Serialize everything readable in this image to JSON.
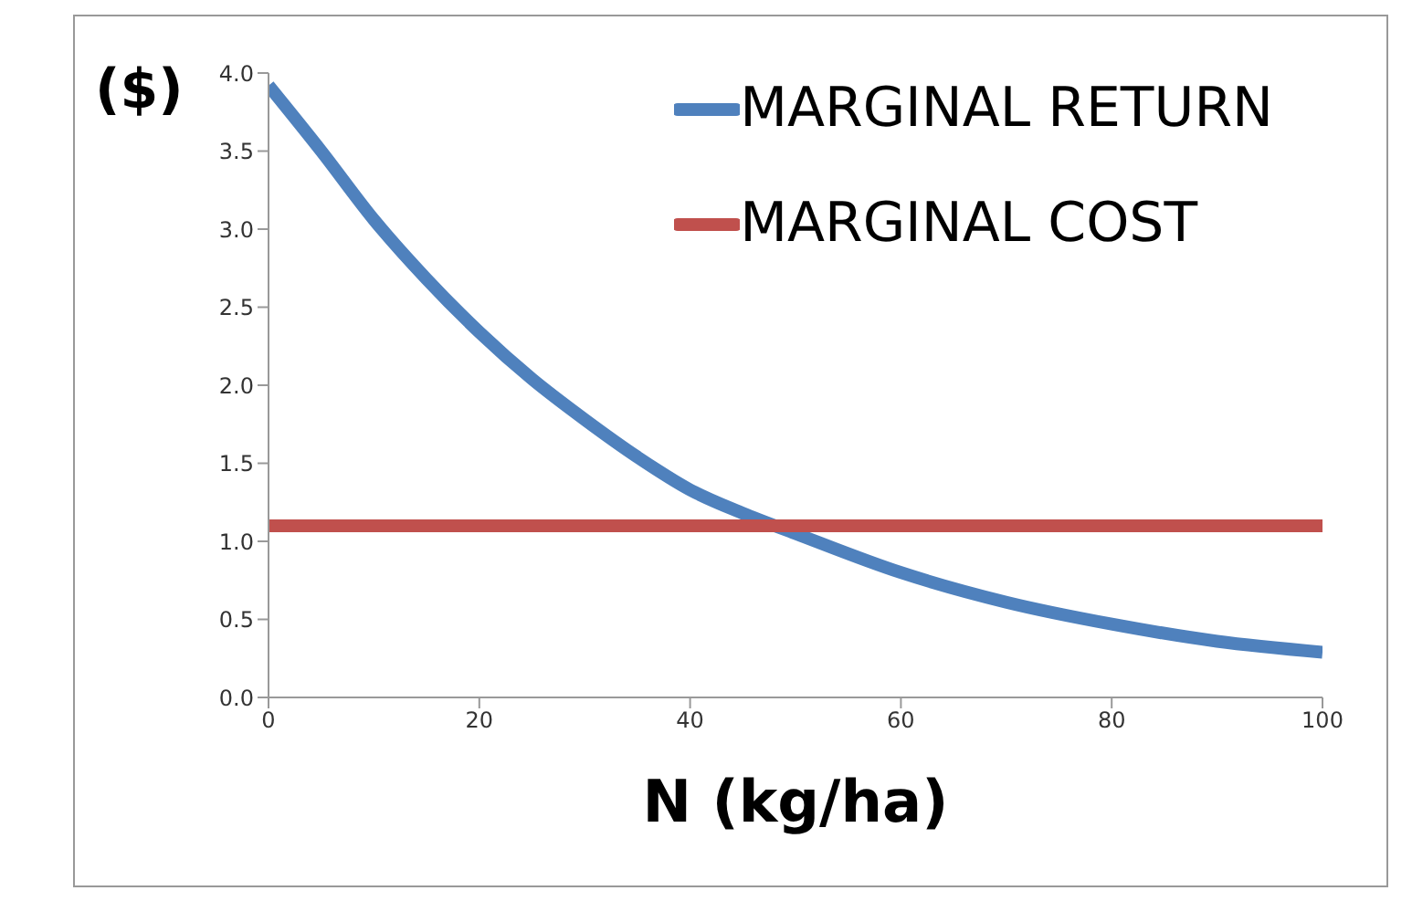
{
  "chart_data": {
    "type": "line",
    "xlabel": "N (kg/ha)",
    "ylabel": "($)",
    "xlim": [
      0,
      100
    ],
    "xticks": [
      0,
      20,
      40,
      60,
      80,
      100
    ],
    "ylim": [
      0,
      4
    ],
    "yticks": [
      {
        "value": 0,
        "label": "0.0"
      },
      {
        "value": 0.5,
        "label": "0.5"
      },
      {
        "value": 1,
        "label": "1.0"
      },
      {
        "value": 1.5,
        "label": "1.5"
      },
      {
        "value": 2,
        "label": "2.0"
      },
      {
        "value": 2.5,
        "label": "2.5"
      },
      {
        "value": 3,
        "label": "3.0"
      },
      {
        "value": 3.5,
        "label": "3.5"
      },
      {
        "value": 4,
        "label": "4.0"
      }
    ],
    "x": [
      0,
      5,
      10,
      15,
      20,
      25,
      30,
      35,
      40,
      45,
      50,
      60,
      70,
      80,
      90,
      100
    ],
    "series": [
      {
        "name": "MARGINAL RETURN",
        "color": "#4f81bd",
        "values": [
          3.92,
          3.5,
          3.06,
          2.68,
          2.34,
          2.04,
          1.78,
          1.54,
          1.33,
          1.18,
          1.05,
          0.8,
          0.61,
          0.47,
          0.36,
          0.29
        ]
      },
      {
        "name": "MARGINAL COST",
        "color": "#c0504d",
        "x": [
          0,
          100
        ],
        "values": [
          1.1,
          1.1
        ]
      }
    ],
    "legend": "top right",
    "grid": false,
    "marker": "none",
    "line_style": "solid"
  }
}
